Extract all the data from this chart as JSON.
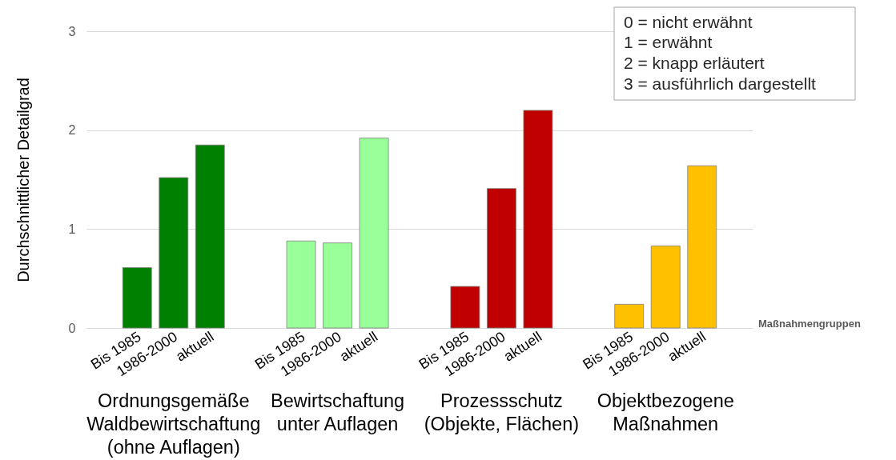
{
  "chart_data": {
    "type": "bar",
    "categories": [
      "Ordnungsgemäße\nWaldbewirtschaftung\n(ohne Auflagen)",
      "Bewirtschaftung\nunter Auflagen",
      "Prozessschutz\n(Objekte, Flächen)",
      "Objektbezogene\nMaßnahmen"
    ],
    "series": [
      {
        "name": "Bis 1985",
        "colors": [
          "#008000",
          "#99ff99",
          "#c00000",
          "#ffc000"
        ],
        "values": [
          0.61,
          0.88,
          0.42,
          0.24
        ]
      },
      {
        "name": "1986-2000",
        "colors": [
          "#008000",
          "#99ff99",
          "#c00000",
          "#ffc000"
        ],
        "values": [
          1.52,
          0.86,
          1.41,
          0.83
        ]
      },
      {
        "name": "aktuell",
        "colors": [
          "#008000",
          "#99ff99",
          "#c00000",
          "#ffc000"
        ],
        "values": [
          1.85,
          1.92,
          2.2,
          1.64
        ]
      }
    ],
    "ylabel": "Durchschnittlicher Detailgrad",
    "xlabel": "Maßnahmengruppen",
    "ylim": [
      0,
      3
    ],
    "yticks": [
      0,
      1,
      2,
      3
    ],
    "grid": "y",
    "annotations": [
      "0 = nicht erwähnt",
      "1 = erwähnt",
      "2 = knapp erläutert",
      "3 = ausführlich dargestellt"
    ]
  }
}
